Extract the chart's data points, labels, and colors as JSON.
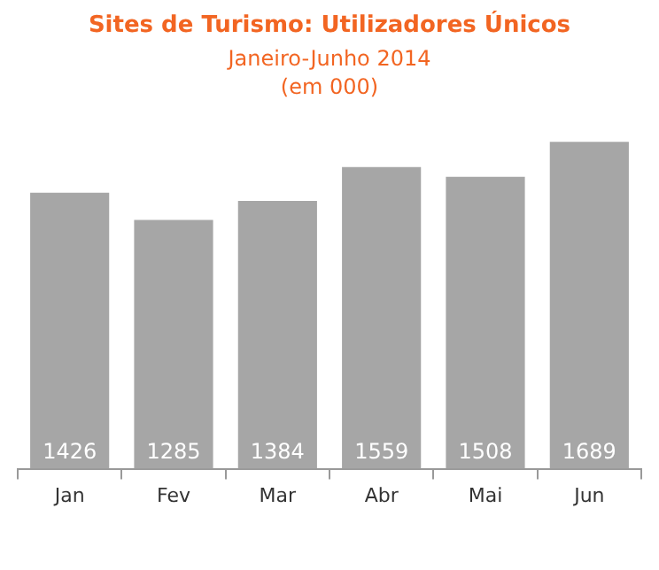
{
  "chart_data": {
    "type": "bar",
    "title": "Sites de Turismo: Utilizadores Únicos",
    "subtitle": "Janeiro-Junho 2014\n(em 000)",
    "categories": [
      "Jan",
      "Fev",
      "Mar",
      "Abr",
      "Mai",
      "Jun"
    ],
    "values": [
      1426,
      1285,
      1384,
      1559,
      1508,
      1689
    ],
    "color": "#a6a6a6",
    "data_labels": true,
    "grid": false,
    "legend": false
  }
}
